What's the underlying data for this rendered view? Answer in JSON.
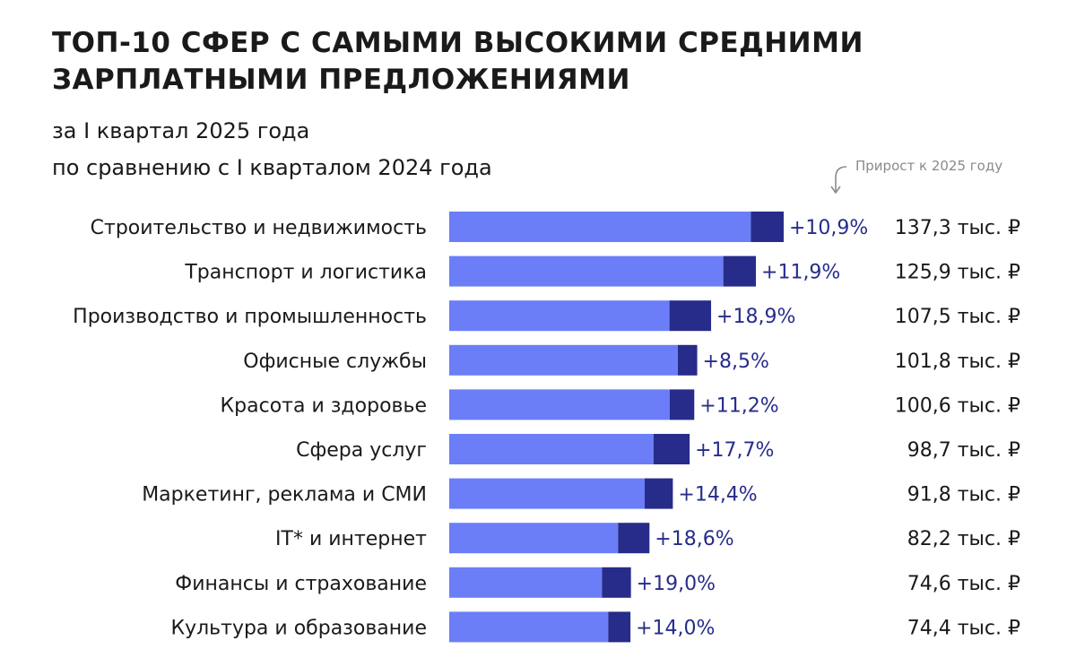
{
  "title_lines": [
    "ТОП-10 СФЕР С САМЫМИ ВЫСОКИМИ СРЕДНИМИ",
    "ЗАРПЛАТНЫМИ ПРЕДЛОЖЕНИЯМИ"
  ],
  "subtitle_lines": [
    "за I квартал 2025 года",
    "по сравнению с I кварталом 2024 года"
  ],
  "note": "Прирост к 2025 году",
  "colors": {
    "base": "#6b7ef7",
    "growth": "#272c8a",
    "growth_label": "#272c8a",
    "text": "#1a1a1a"
  },
  "chart_data": {
    "type": "bar",
    "orientation": "horizontal",
    "stacked": true,
    "categories": [
      "Строительство и недвижимость",
      "Транспорт и логистика",
      "Производство и промышленность",
      "Офисные службы",
      "Красота и здоровье",
      "Сфера услуг",
      "Маркетинг, реклама и СМИ",
      "IT* и интернет",
      "Финансы и страхование",
      "Культура и образование"
    ],
    "values_2025": [
      137.3,
      125.9,
      107.5,
      101.8,
      100.6,
      98.7,
      91.8,
      82.2,
      74.6,
      74.4
    ],
    "value_labels": [
      "137,3 тыс. ₽",
      "125,9 тыс. ₽",
      "107,5 тыс. ₽",
      "101,8 тыс. ₽",
      "100,6 тыс. ₽",
      "98,7 тыс. ₽",
      "91,8 тыс. ₽",
      "82,2 тыс. ₽",
      "74,6 тыс. ₽",
      "74,4 тыс. ₽"
    ],
    "growth_pct": [
      10.9,
      11.9,
      18.9,
      8.5,
      11.2,
      17.7,
      14.4,
      18.6,
      19.0,
      14.0
    ],
    "growth_labels": [
      "+10,9%",
      "+11,9%",
      "+18,9%",
      "+8,5%",
      "+11,2%",
      "+17,7%",
      "+14,4%",
      "+18,6%",
      "+19,0%",
      "+14,0%"
    ],
    "grid": false,
    "legend": "none"
  }
}
